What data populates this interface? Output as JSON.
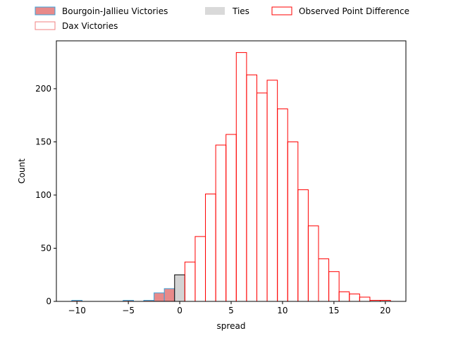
{
  "chart_data": {
    "type": "bar",
    "title": "",
    "xlabel": "spread",
    "ylabel": "Count",
    "xlim": [
      -12,
      22
    ],
    "ylim": [
      0,
      245
    ],
    "xticks": [
      -10,
      -5,
      0,
      5,
      10,
      15,
      20
    ],
    "yticks": [
      0,
      50,
      100,
      150,
      200
    ],
    "bin_width": 1,
    "legend_position": "top",
    "grid": false,
    "series": [
      {
        "name": "Bourgoin-Jallieu Victories",
        "fill": "#e88a8a",
        "stroke": "#3aa0d8",
        "style": "filled",
        "bins": [
          {
            "x0": -10.5,
            "x1": -9.5,
            "count": 1
          },
          {
            "x0": -5.5,
            "x1": -4.5,
            "count": 1
          },
          {
            "x0": -3.5,
            "x1": -2.5,
            "count": 1
          },
          {
            "x0": -2.5,
            "x1": -1.5,
            "count": 8
          },
          {
            "x0": -1.5,
            "x1": -0.5,
            "count": 12
          }
        ]
      },
      {
        "name": "Dax Victories",
        "fill": "none",
        "stroke": "#f08080",
        "style": "outline",
        "bins": []
      },
      {
        "name": "Ties",
        "fill": "#d3d3d3",
        "stroke": "#000000",
        "style": "filled",
        "bins": [
          {
            "x0": -0.5,
            "x1": 0.5,
            "count": 25
          }
        ]
      },
      {
        "name": "Observed Point Difference",
        "fill": "none",
        "stroke": "#ff0000",
        "style": "outline",
        "bins": [
          {
            "x0": 0.5,
            "x1": 1.5,
            "count": 37
          },
          {
            "x0": 1.5,
            "x1": 2.5,
            "count": 61
          },
          {
            "x0": 2.5,
            "x1": 3.5,
            "count": 101
          },
          {
            "x0": 3.5,
            "x1": 4.5,
            "count": 147
          },
          {
            "x0": 4.5,
            "x1": 5.5,
            "count": 157
          },
          {
            "x0": 5.5,
            "x1": 6.5,
            "count": 234
          },
          {
            "x0": 6.5,
            "x1": 7.5,
            "count": 213
          },
          {
            "x0": 7.5,
            "x1": 8.5,
            "count": 196
          },
          {
            "x0": 8.5,
            "x1": 9.5,
            "count": 208
          },
          {
            "x0": 9.5,
            "x1": 10.5,
            "count": 181
          },
          {
            "x0": 10.5,
            "x1": 11.5,
            "count": 150
          },
          {
            "x0": 11.5,
            "x1": 12.5,
            "count": 105
          },
          {
            "x0": 12.5,
            "x1": 13.5,
            "count": 71
          },
          {
            "x0": 13.5,
            "x1": 14.5,
            "count": 40
          },
          {
            "x0": 14.5,
            "x1": 15.5,
            "count": 28
          },
          {
            "x0": 15.5,
            "x1": 16.5,
            "count": 9
          },
          {
            "x0": 16.5,
            "x1": 17.5,
            "count": 7
          },
          {
            "x0": 17.5,
            "x1": 18.5,
            "count": 4
          },
          {
            "x0": 18.5,
            "x1": 19.5,
            "count": 1
          },
          {
            "x0": 19.5,
            "x1": 20.5,
            "count": 1
          }
        ]
      }
    ]
  }
}
